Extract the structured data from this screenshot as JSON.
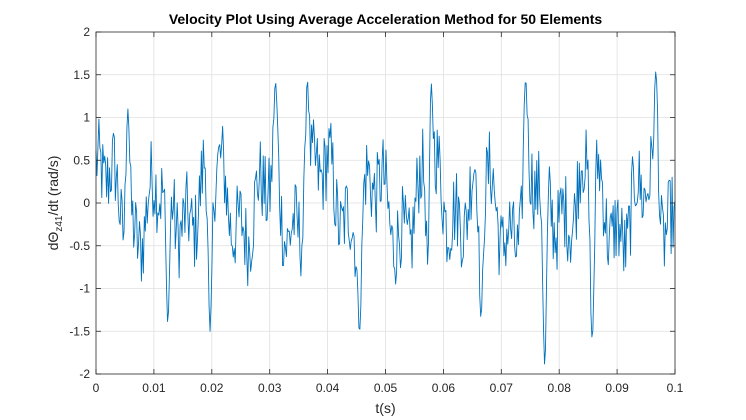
{
  "chart_data": {
    "type": "line",
    "title": "Velocity Plot Using Average Acceleration Method for 50 Elements",
    "xlabel": "t(s)",
    "ylabel": {
      "prefix": "dΘ",
      "subscript": "z41",
      "suffix": "/dt  (rad/s)"
    },
    "xlim": [
      0,
      0.1
    ],
    "ylim": [
      -2,
      2
    ],
    "xticks": [
      0,
      0.01,
      0.02,
      0.03,
      0.04,
      0.05,
      0.06,
      0.07,
      0.08,
      0.09,
      0.1
    ],
    "xtick_labels": [
      "0",
      "0.01",
      "0.02",
      "0.03",
      "0.04",
      "0.05",
      "0.06",
      "0.07",
      "0.08",
      "0.09",
      "0.1"
    ],
    "yticks": [
      -2,
      -1.5,
      -1,
      -0.5,
      0,
      0.5,
      1,
      1.5,
      2
    ],
    "ytick_labels": [
      "-2",
      "-1.5",
      "-1",
      "-0.5",
      "0",
      "0.5",
      "1",
      "1.5",
      "2"
    ],
    "grid": true,
    "series": [
      {
        "name": "velocity",
        "color": "#0072bd",
        "n_points": 600,
        "envelope_features": [
          {
            "x": 0.0055,
            "y": 1.1
          },
          {
            "x": 0.0124,
            "y": -1.4
          },
          {
            "x": 0.0197,
            "y": -1.5
          },
          {
            "x": 0.031,
            "y": 1.41
          },
          {
            "x": 0.0365,
            "y": 1.44
          },
          {
            "x": 0.0455,
            "y": -1.5
          },
          {
            "x": 0.0575,
            "y": -1.43
          },
          {
            "x": 0.0579,
            "y": 1.4
          },
          {
            "x": 0.0665,
            "y": -1.35
          },
          {
            "x": 0.0742,
            "y": 1.45
          },
          {
            "x": 0.0775,
            "y": -1.9
          },
          {
            "x": 0.0857,
            "y": -1.6
          },
          {
            "x": 0.0967,
            "y": 1.54
          }
        ]
      }
    ]
  },
  "colors": {
    "line": "#0072bd",
    "grid": "#dfdfdf",
    "axes": "#262626",
    "background": "#ffffff"
  }
}
